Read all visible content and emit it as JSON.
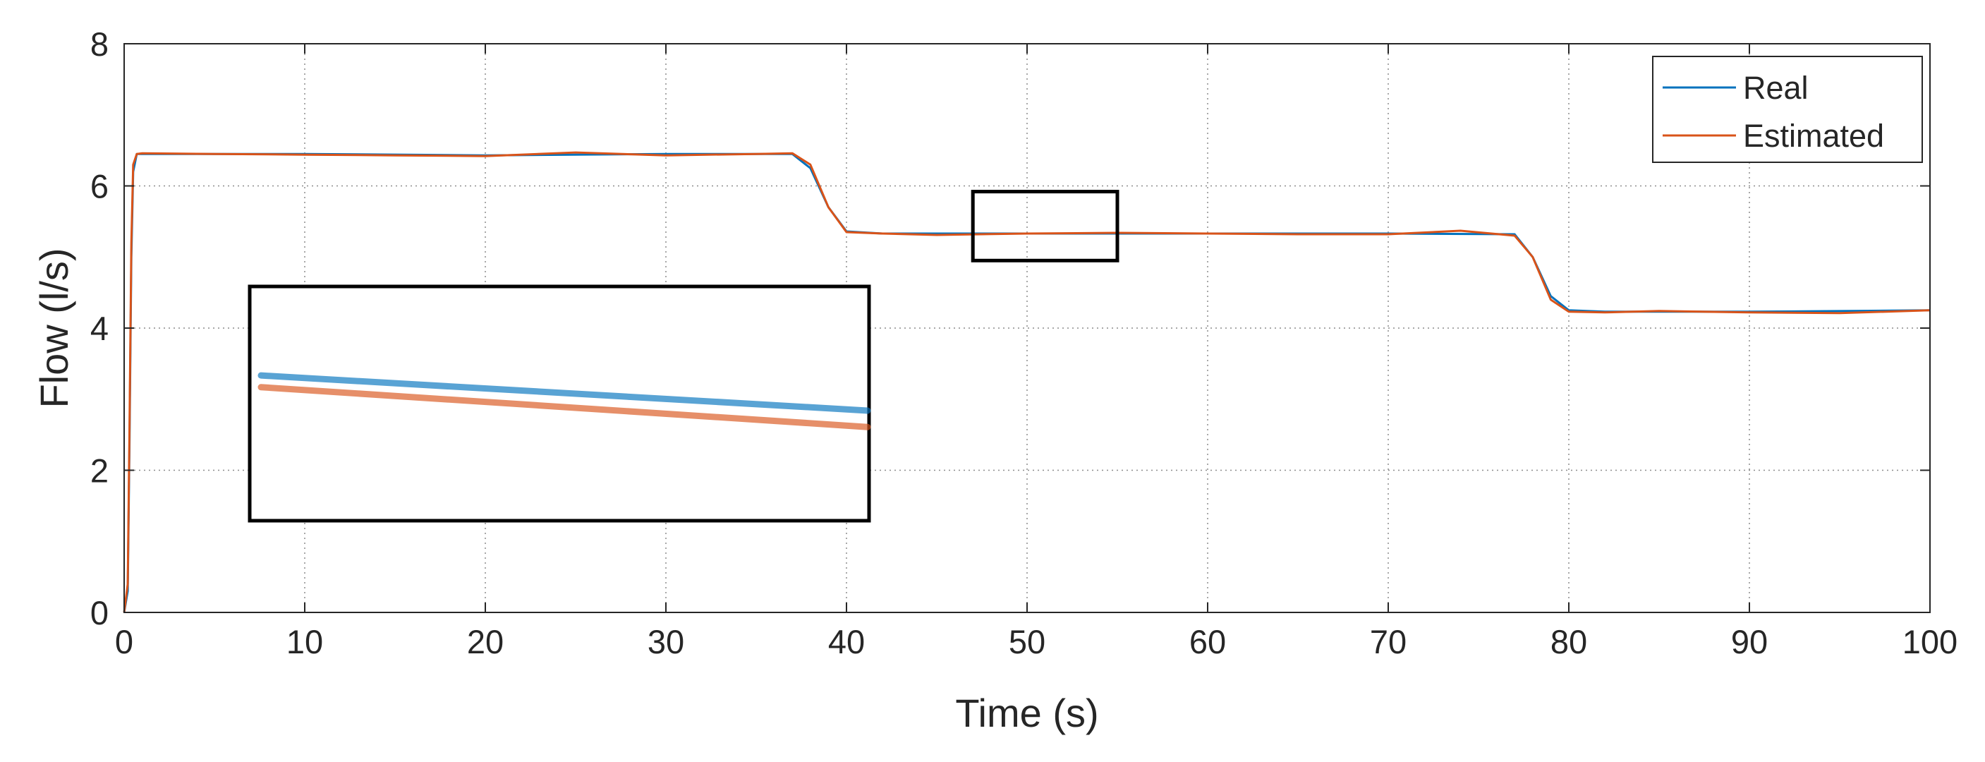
{
  "chart_data": {
    "type": "line",
    "title": "",
    "xlabel": "Time (s)",
    "ylabel": "Flow (l/s)",
    "xlim": [
      0,
      100
    ],
    "ylim": [
      0,
      8
    ],
    "xticks": [
      0,
      10,
      20,
      30,
      40,
      50,
      60,
      70,
      80,
      90,
      100
    ],
    "yticks": [
      0,
      2,
      4,
      6,
      8
    ],
    "grid": true,
    "legend_position": "top-right",
    "series": [
      {
        "name": "Real",
        "color": "#0072BD",
        "x": [
          0,
          0.2,
          0.3,
          0.4,
          0.5,
          0.7,
          1,
          10,
          20,
          30,
          37,
          38,
          39,
          40,
          42,
          50,
          60,
          70,
          77,
          78,
          79,
          80,
          82,
          90,
          100
        ],
        "y": [
          0,
          0.3,
          2.5,
          5.0,
          6.2,
          6.45,
          6.45,
          6.45,
          6.43,
          6.45,
          6.45,
          6.25,
          5.7,
          5.36,
          5.33,
          5.33,
          5.33,
          5.33,
          5.32,
          5.0,
          4.45,
          4.25,
          4.23,
          4.23,
          4.25
        ]
      },
      {
        "name": "Estimated",
        "color": "#D95319",
        "x": [
          0,
          0.2,
          0.3,
          0.4,
          0.5,
          0.7,
          1,
          5,
          10,
          15,
          20,
          25,
          30,
          35,
          37,
          38,
          39,
          40,
          42,
          45,
          50,
          55,
          60,
          65,
          70,
          74,
          77,
          78,
          79,
          80,
          82,
          85,
          90,
          95,
          100
        ],
        "y": [
          0,
          0.4,
          2.7,
          5.2,
          6.3,
          6.45,
          6.46,
          6.45,
          6.44,
          6.43,
          6.42,
          6.47,
          6.43,
          6.45,
          6.46,
          6.3,
          5.7,
          5.35,
          5.33,
          5.31,
          5.33,
          5.34,
          5.33,
          5.32,
          5.32,
          5.37,
          5.3,
          5.0,
          4.4,
          4.23,
          4.22,
          4.24,
          4.22,
          4.21,
          4.25
        ]
      }
    ],
    "zoom_box": {
      "xlim": [
        47,
        55
      ],
      "ylim": [
        4.95,
        5.92
      ]
    },
    "inset": {
      "source": "zoom_box",
      "lines": [
        {
          "series": "Real",
          "start": 0.38,
          "end": 0.53
        },
        {
          "series": "Estimated",
          "start": 0.43,
          "end": 0.6
        }
      ]
    }
  }
}
